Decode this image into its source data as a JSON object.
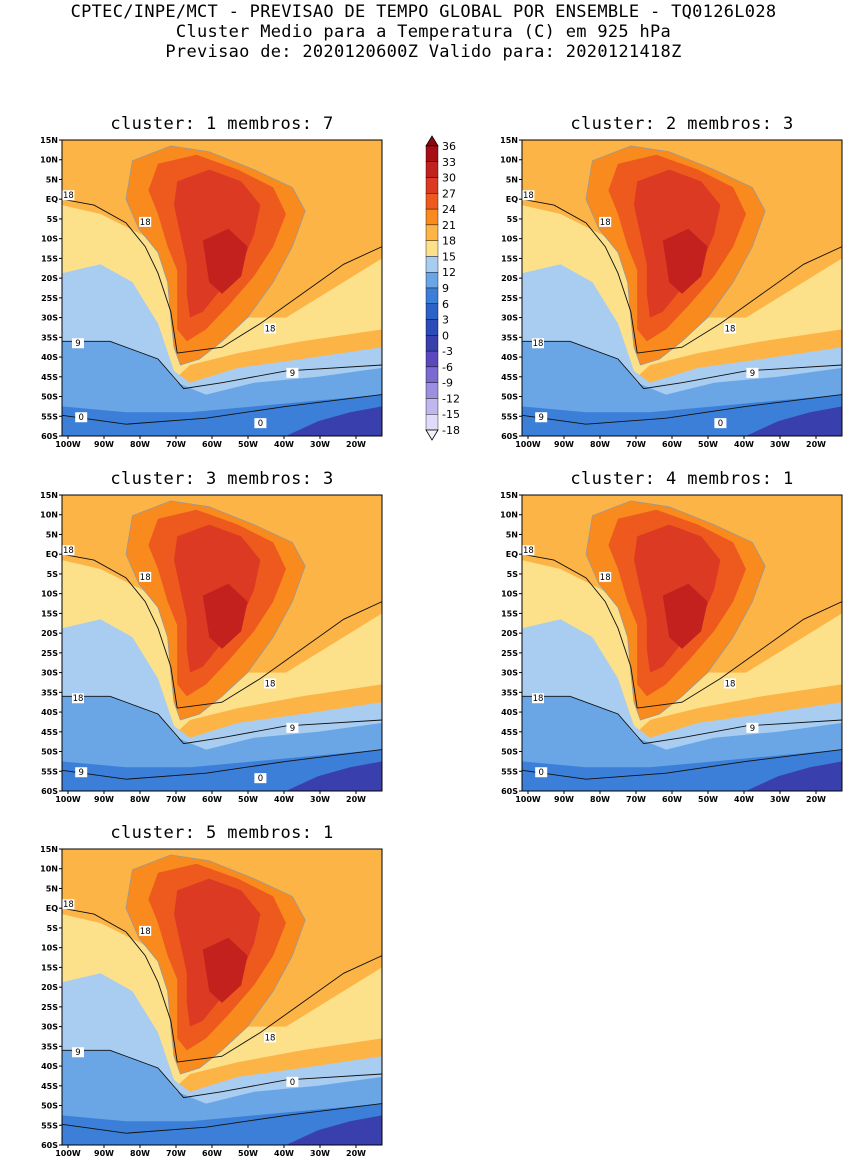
{
  "header": {
    "line1": "CPTEC/INPE/MCT - PREVISAO DE TEMPO GLOBAL POR ENSEMBLE - TQ0126L028",
    "line2": "Cluster Medio para a Temperatura (C) em 925 hPa",
    "line3": "Previsao de: 2020120600Z   Valido para: 2020121418Z"
  },
  "axes": {
    "lat_labels": [
      "15N",
      "10N",
      "5N",
      "EQ",
      "5S",
      "10S",
      "15S",
      "20S",
      "25S",
      "30S",
      "35S",
      "40S",
      "45S",
      "50S",
      "55S",
      "60S"
    ],
    "lon_labels": [
      "100W",
      "90W",
      "80W",
      "70W",
      "60W",
      "50W",
      "40W",
      "30W",
      "20W"
    ]
  },
  "colorbar": {
    "labels": [
      "36",
      "33",
      "30",
      "27",
      "24",
      "21",
      "18",
      "15",
      "12",
      "9",
      "6",
      "3",
      "0",
      "-3",
      "-6",
      "-9",
      "-12",
      "-15",
      "-18"
    ],
    "colors": [
      "#a50f15",
      "#c2211e",
      "#dc3a22",
      "#ee5a1e",
      "#f88a1e",
      "#fdb447",
      "#fde08a",
      "#a9cdf0",
      "#6aa6e6",
      "#3b7fd8",
      "#2a62c8",
      "#2a4cb8",
      "#3a3fae",
      "#5a48bf",
      "#7a6bd1",
      "#9d8fe0",
      "#c1b6ee",
      "#e0dbf8"
    ]
  },
  "panels": [
    {
      "title": "cluster: 1   membros: 7",
      "contour_labels": [
        "18",
        "18",
        "18",
        "9",
        "9",
        "0",
        "0"
      ]
    },
    {
      "title": "cluster: 2   membros: 3",
      "contour_labels": [
        "18",
        "18",
        "18",
        "18",
        "9",
        "9",
        "0"
      ]
    },
    {
      "title": "cluster: 3   membros: 3",
      "contour_labels": [
        "18",
        "18",
        "18",
        "18",
        "9",
        "9",
        "0"
      ]
    },
    {
      "title": "cluster: 4   membros: 1",
      "contour_labels": [
        "18",
        "18",
        "18",
        "18",
        "9",
        "0"
      ]
    },
    {
      "title": "cluster: 5   membros: 1",
      "contour_labels": [
        "18",
        "18",
        "18",
        "9",
        "0"
      ]
    }
  ]
}
